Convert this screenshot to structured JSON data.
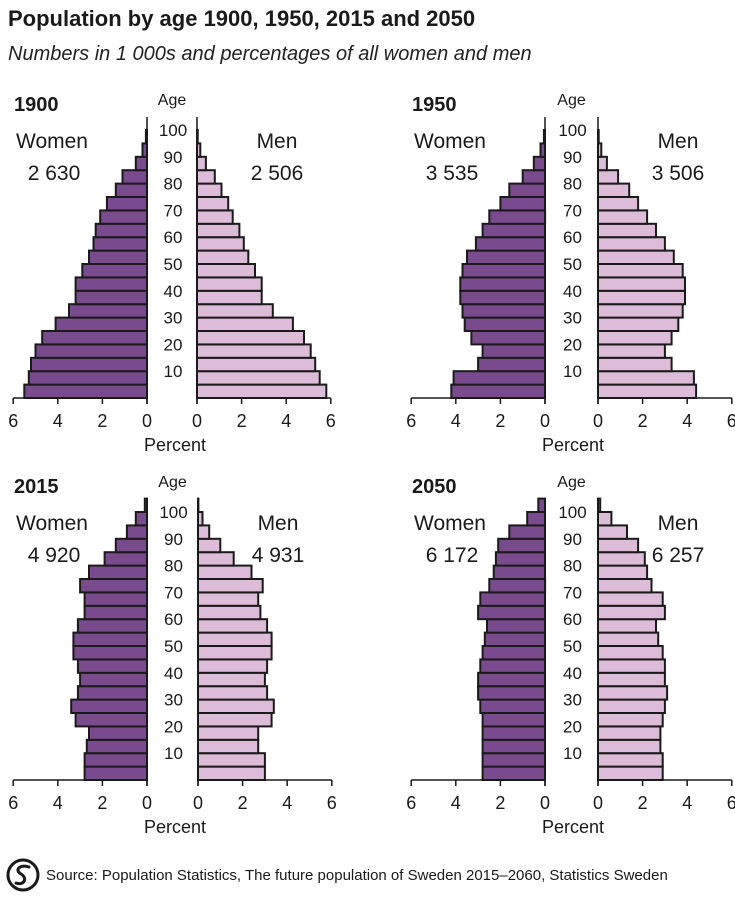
{
  "title": "Population by age 1900, 1950, 2015 and 2050",
  "subtitle": "Numbers in 1 000s and percentages of all women and men",
  "source": "Source: Population Statistics, The future population of Sweden 2015–2060, Statistics Sweden",
  "source_logo_icon": "statistics-sweden-logo-icon",
  "colors": {
    "women_fill": "#7a4a8e",
    "men_fill": "#dcbcd8",
    "bar_stroke": "#1a1a1a",
    "axis": "#1a1a1a"
  },
  "chart_data": [
    {
      "type": "bar",
      "orientation": "horizontal-population-pyramid",
      "title": "1900",
      "age_axis_label": "Age",
      "age_ticks": [
        "100",
        "90",
        "80",
        "70",
        "60",
        "50",
        "40",
        "30",
        "20",
        "10"
      ],
      "x_ticks": [
        "6",
        "4",
        "2",
        "0"
      ],
      "xlabel": "Percent",
      "xlim": [
        0,
        6
      ],
      "women": {
        "label": "Women",
        "total": "2 630"
      },
      "men": {
        "label": "Men",
        "total": "2 506"
      },
      "age_groups": [
        "0-4",
        "5-9",
        "10-14",
        "15-19",
        "20-24",
        "25-29",
        "30-34",
        "35-39",
        "40-44",
        "45-49",
        "50-54",
        "55-59",
        "60-64",
        "65-69",
        "70-74",
        "75-79",
        "80-84",
        "85-89",
        "90-94",
        "95-99",
        "100+"
      ],
      "women_values": [
        5.5,
        5.3,
        5.2,
        5.0,
        4.7,
        4.1,
        3.5,
        3.2,
        3.2,
        2.9,
        2.6,
        2.4,
        2.3,
        2.1,
        1.8,
        1.4,
        1.1,
        0.5,
        0.2,
        0.05,
        0.0
      ],
      "men_values": [
        5.8,
        5.5,
        5.3,
        5.1,
        4.8,
        4.3,
        3.4,
        2.9,
        2.9,
        2.6,
        2.3,
        2.1,
        1.9,
        1.6,
        1.4,
        1.1,
        0.8,
        0.4,
        0.15,
        0.03,
        0.0
      ]
    },
    {
      "type": "bar",
      "orientation": "horizontal-population-pyramid",
      "title": "1950",
      "age_axis_label": "Age",
      "age_ticks": [
        "100",
        "90",
        "80",
        "70",
        "60",
        "50",
        "40",
        "30",
        "20",
        "10"
      ],
      "x_ticks": [
        "6",
        "4",
        "2",
        "0"
      ],
      "xlabel": "Percent",
      "xlim": [
        0,
        6
      ],
      "women": {
        "label": "Women",
        "total": "3 535"
      },
      "men": {
        "label": "Men",
        "total": "3 506"
      },
      "age_groups": [
        "0-4",
        "5-9",
        "10-14",
        "15-19",
        "20-24",
        "25-29",
        "30-34",
        "35-39",
        "40-44",
        "45-49",
        "50-54",
        "55-59",
        "60-64",
        "65-69",
        "70-74",
        "75-79",
        "80-84",
        "85-89",
        "90-94",
        "95-99",
        "100+"
      ],
      "women_values": [
        4.2,
        4.1,
        3.0,
        2.8,
        3.3,
        3.6,
        3.7,
        3.8,
        3.8,
        3.7,
        3.5,
        3.1,
        2.8,
        2.5,
        2.0,
        1.6,
        1.0,
        0.5,
        0.2,
        0.05,
        0.0
      ],
      "men_values": [
        4.4,
        4.3,
        3.3,
        3.0,
        3.3,
        3.6,
        3.8,
        3.9,
        3.9,
        3.8,
        3.4,
        3.0,
        2.6,
        2.2,
        1.8,
        1.4,
        0.9,
        0.4,
        0.15,
        0.03,
        0.0
      ]
    },
    {
      "type": "bar",
      "orientation": "horizontal-population-pyramid",
      "title": "2015",
      "age_axis_label": "Age",
      "age_ticks": [
        "100",
        "90",
        "80",
        "70",
        "60",
        "50",
        "40",
        "30",
        "20",
        "10"
      ],
      "x_ticks": [
        "6",
        "4",
        "2",
        "0"
      ],
      "xlabel": "Percent",
      "xlim": [
        0,
        6
      ],
      "women": {
        "label": "Women",
        "total": "4 920"
      },
      "men": {
        "label": "Men",
        "total": "4 931"
      },
      "age_groups": [
        "0-4",
        "5-9",
        "10-14",
        "15-19",
        "20-24",
        "25-29",
        "30-34",
        "35-39",
        "40-44",
        "45-49",
        "50-54",
        "55-59",
        "60-64",
        "65-69",
        "70-74",
        "75-79",
        "80-84",
        "85-89",
        "90-94",
        "95-99",
        "100+"
      ],
      "women_values": [
        2.8,
        2.8,
        2.7,
        2.6,
        3.2,
        3.4,
        3.1,
        3.0,
        3.1,
        3.3,
        3.3,
        3.1,
        2.8,
        2.8,
        3.0,
        2.6,
        1.9,
        1.4,
        0.9,
        0.5,
        0.1
      ],
      "men_values": [
        3.0,
        3.0,
        2.7,
        2.7,
        3.3,
        3.4,
        3.1,
        3.0,
        3.1,
        3.3,
        3.3,
        3.1,
        2.8,
        2.7,
        2.9,
        2.4,
        1.6,
        1.0,
        0.5,
        0.2,
        0.02
      ]
    },
    {
      "type": "bar",
      "orientation": "horizontal-population-pyramid",
      "title": "2050",
      "age_axis_label": "Age",
      "age_ticks": [
        "100",
        "90",
        "80",
        "70",
        "60",
        "50",
        "40",
        "30",
        "20",
        "10"
      ],
      "x_ticks": [
        "6",
        "4",
        "2",
        "0"
      ],
      "xlabel": "Percent",
      "xlim": [
        0,
        6
      ],
      "women": {
        "label": "Women",
        "total": "6 172"
      },
      "men": {
        "label": "Men",
        "total": "6 257"
      },
      "age_groups": [
        "0-4",
        "5-9",
        "10-14",
        "15-19",
        "20-24",
        "25-29",
        "30-34",
        "35-39",
        "40-44",
        "45-49",
        "50-54",
        "55-59",
        "60-64",
        "65-69",
        "70-74",
        "75-79",
        "80-84",
        "85-89",
        "90-94",
        "95-99",
        "100+"
      ],
      "women_values": [
        2.8,
        2.8,
        2.8,
        2.8,
        2.8,
        2.9,
        3.0,
        3.0,
        2.9,
        2.8,
        2.7,
        2.6,
        3.0,
        2.9,
        2.5,
        2.3,
        2.2,
        2.1,
        1.6,
        0.8,
        0.3
      ],
      "men_values": [
        2.9,
        2.9,
        2.8,
        2.8,
        2.9,
        3.0,
        3.1,
        3.0,
        3.0,
        2.9,
        2.7,
        2.6,
        3.0,
        2.9,
        2.4,
        2.2,
        2.1,
        1.8,
        1.3,
        0.6,
        0.1
      ]
    }
  ]
}
